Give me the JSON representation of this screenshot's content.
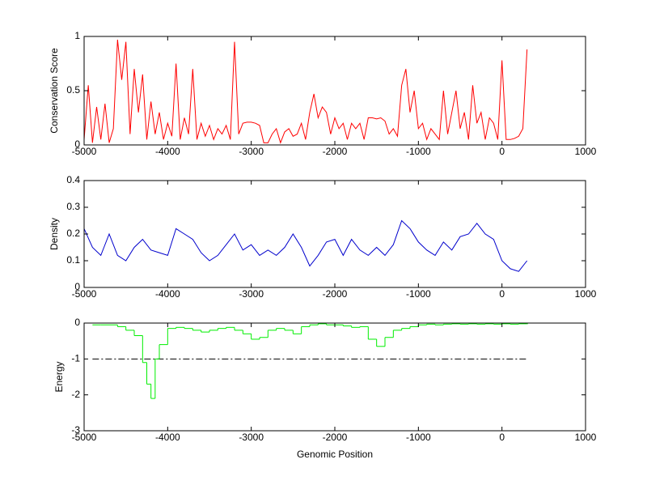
{
  "chart_data": [
    {
      "type": "line",
      "ylabel": "Conservation Score",
      "x": [
        -5000,
        -4950,
        -4900,
        -4850,
        -4800,
        -4750,
        -4700,
        -4650,
        -4600,
        -4550,
        -4500,
        -4450,
        -4400,
        -4350,
        -4300,
        -4250,
        -4200,
        -4150,
        -4100,
        -4050,
        -4000,
        -3950,
        -3900,
        -3850,
        -3800,
        -3750,
        -3700,
        -3650,
        -3600,
        -3550,
        -3500,
        -3450,
        -3400,
        -3350,
        -3300,
        -3250,
        -3200,
        -3150,
        -3100,
        -3050,
        -3000,
        -2950,
        -2900,
        -2850,
        -2800,
        -2750,
        -2700,
        -2650,
        -2600,
        -2550,
        -2500,
        -2450,
        -2400,
        -2350,
        -2300,
        -2250,
        -2200,
        -2150,
        -2100,
        -2050,
        -2000,
        -1950,
        -1900,
        -1850,
        -1800,
        -1750,
        -1700,
        -1650,
        -1600,
        -1550,
        -1500,
        -1450,
        -1400,
        -1350,
        -1300,
        -1250,
        -1200,
        -1150,
        -1100,
        -1050,
        -1000,
        -950,
        -900,
        -850,
        -800,
        -750,
        -700,
        -650,
        -600,
        -550,
        -500,
        -450,
        -400,
        -350,
        -300,
        -250,
        -200,
        -150,
        -100,
        -50,
        0,
        50,
        100,
        150,
        200,
        250,
        300
      ],
      "series": [
        {
          "color": "#ff0000",
          "values": [
            0.05,
            0.55,
            0.02,
            0.35,
            0.05,
            0.38,
            0.02,
            0.15,
            0.97,
            0.6,
            0.95,
            0.1,
            0.7,
            0.3,
            0.65,
            0.05,
            0.4,
            0.1,
            0.3,
            0.05,
            0.2,
            0.08,
            0.75,
            0.05,
            0.25,
            0.1,
            0.7,
            0.05,
            0.2,
            0.08,
            0.18,
            0.05,
            0.15,
            0.1,
            0.18,
            0.05,
            0.95,
            0.1,
            0.2,
            0.21,
            0.21,
            0.2,
            0.18,
            0.02,
            0.02,
            0.1,
            0.15,
            0.02,
            0.12,
            0.15,
            0.08,
            0.1,
            0.2,
            0.05,
            0.3,
            0.47,
            0.25,
            0.35,
            0.3,
            0.1,
            0.25,
            0.15,
            0.2,
            0.05,
            0.2,
            0.15,
            0.2,
            0.05,
            0.25,
            0.25,
            0.24,
            0.25,
            0.22,
            0.1,
            0.15,
            0.08,
            0.55,
            0.7,
            0.3,
            0.5,
            0.15,
            0.2,
            0.05,
            0.15,
            0.1,
            0.05,
            0.5,
            0.1,
            0.3,
            0.5,
            0.15,
            0.3,
            0.05,
            0.55,
            0.2,
            0.3,
            0.05,
            0.25,
            0.2,
            0.05,
            0.78,
            0.05,
            0.05,
            0.06,
            0.08,
            0.15,
            0.88
          ]
        }
      ],
      "xlim": [
        -5000,
        1000
      ],
      "xticks": [
        -5000,
        -4000,
        -3000,
        -2000,
        -1000,
        0,
        1000
      ],
      "ylim": [
        0,
        1
      ],
      "yticks": [
        0,
        0.5,
        1
      ]
    },
    {
      "type": "line",
      "ylabel": "Density",
      "x": [
        -5000,
        -4900,
        -4800,
        -4700,
        -4600,
        -4500,
        -4400,
        -4300,
        -4200,
        -4100,
        -4000,
        -3900,
        -3800,
        -3700,
        -3600,
        -3500,
        -3400,
        -3300,
        -3200,
        -3100,
        -3000,
        -2900,
        -2800,
        -2700,
        -2600,
        -2500,
        -2400,
        -2300,
        -2200,
        -2100,
        -2000,
        -1900,
        -1800,
        -1700,
        -1600,
        -1500,
        -1400,
        -1300,
        -1200,
        -1100,
        -1000,
        -900,
        -800,
        -700,
        -600,
        -500,
        -400,
        -300,
        -200,
        -100,
        0,
        100,
        200,
        300
      ],
      "series": [
        {
          "color": "#0000cc",
          "values": [
            0.22,
            0.15,
            0.12,
            0.2,
            0.12,
            0.1,
            0.15,
            0.18,
            0.14,
            0.13,
            0.12,
            0.22,
            0.2,
            0.18,
            0.13,
            0.1,
            0.12,
            0.16,
            0.2,
            0.14,
            0.16,
            0.12,
            0.14,
            0.12,
            0.15,
            0.2,
            0.15,
            0.08,
            0.12,
            0.17,
            0.18,
            0.12,
            0.18,
            0.14,
            0.12,
            0.15,
            0.12,
            0.16,
            0.25,
            0.22,
            0.17,
            0.14,
            0.12,
            0.17,
            0.14,
            0.19,
            0.2,
            0.24,
            0.2,
            0.18,
            0.1,
            0.07,
            0.06,
            0.1
          ]
        }
      ],
      "xlim": [
        -5000,
        1000
      ],
      "xticks": [
        -5000,
        -4000,
        -3000,
        -2000,
        -1000,
        0,
        1000
      ],
      "ylim": [
        0,
        0.4
      ],
      "yticks": [
        0,
        0.1,
        0.2,
        0.3,
        0.4
      ]
    },
    {
      "type": "step",
      "ylabel": "Energy",
      "xlabel": "Genomic Position",
      "x": [
        -4900,
        -4800,
        -4700,
        -4600,
        -4500,
        -4400,
        -4300,
        -4250,
        -4200,
        -4150,
        -4100,
        -4000,
        -3900,
        -3800,
        -3700,
        -3600,
        -3500,
        -3400,
        -3300,
        -3200,
        -3100,
        -3000,
        -2900,
        -2800,
        -2700,
        -2600,
        -2500,
        -2400,
        -2300,
        -2200,
        -2100,
        -2000,
        -1900,
        -1800,
        -1700,
        -1600,
        -1500,
        -1400,
        -1300,
        -1200,
        -1100,
        -1000,
        -900,
        -800,
        -700,
        -600,
        -500,
        -400,
        -300,
        -200,
        -100,
        0,
        100,
        200,
        300
      ],
      "series": [
        {
          "color": "#00ee00",
          "values": [
            -0.05,
            -0.05,
            -0.05,
            -0.1,
            -0.2,
            -0.35,
            -1.1,
            -1.7,
            -2.1,
            -1.0,
            -0.6,
            -0.15,
            -0.12,
            -0.15,
            -0.2,
            -0.25,
            -0.2,
            -0.15,
            -0.12,
            -0.2,
            -0.3,
            -0.45,
            -0.4,
            -0.2,
            -0.15,
            -0.2,
            -0.3,
            -0.1,
            -0.05,
            -0.02,
            -0.05,
            -0.05,
            -0.08,
            -0.12,
            -0.1,
            -0.45,
            -0.65,
            -0.4,
            -0.2,
            -0.15,
            -0.1,
            -0.05,
            -0.03,
            -0.05,
            -0.03,
            -0.02,
            -0.03,
            -0.02,
            -0.03,
            -0.02,
            -0.03,
            -0.02,
            -0.03,
            -0.02,
            -0.02
          ]
        }
      ],
      "reference": {
        "y": -1,
        "x": [
          -4900,
          300
        ],
        "color": "#000000",
        "dash": "dashdot"
      },
      "xlim": [
        -5000,
        1000
      ],
      "xticks": [
        -5000,
        -4000,
        -3000,
        -2000,
        -1000,
        0,
        1000
      ],
      "ylim": [
        -3,
        0
      ],
      "yticks": [
        -3,
        -2,
        -1,
        0
      ]
    }
  ]
}
